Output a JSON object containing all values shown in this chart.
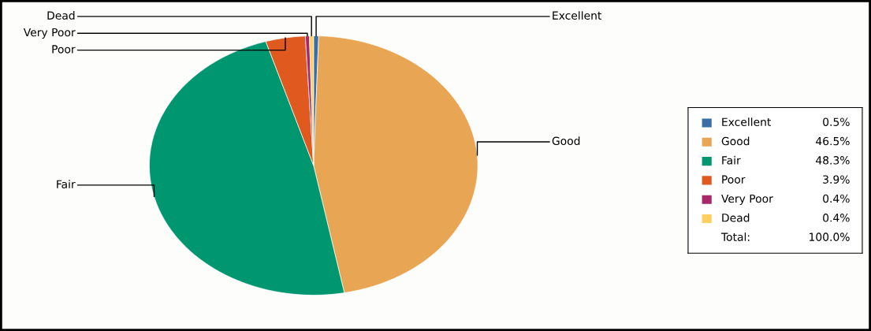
{
  "chart_data": {
    "type": "pie",
    "categories": [
      "Excellent",
      "Good",
      "Fair",
      "Poor",
      "Very Poor",
      "Dead"
    ],
    "values": [
      0.5,
      46.5,
      48.3,
      3.9,
      0.4,
      0.4
    ],
    "colors": [
      "#3a6ea5",
      "#e8a553",
      "#009670",
      "#e05a20",
      "#a8286a",
      "#ffd060"
    ],
    "value_labels": [
      "0.5%",
      "46.5%",
      "48.3%",
      "3.9%",
      "0.4%",
      "0.4%"
    ],
    "legend": "right",
    "annotations": [
      "Total:",
      "100.0%"
    ]
  }
}
